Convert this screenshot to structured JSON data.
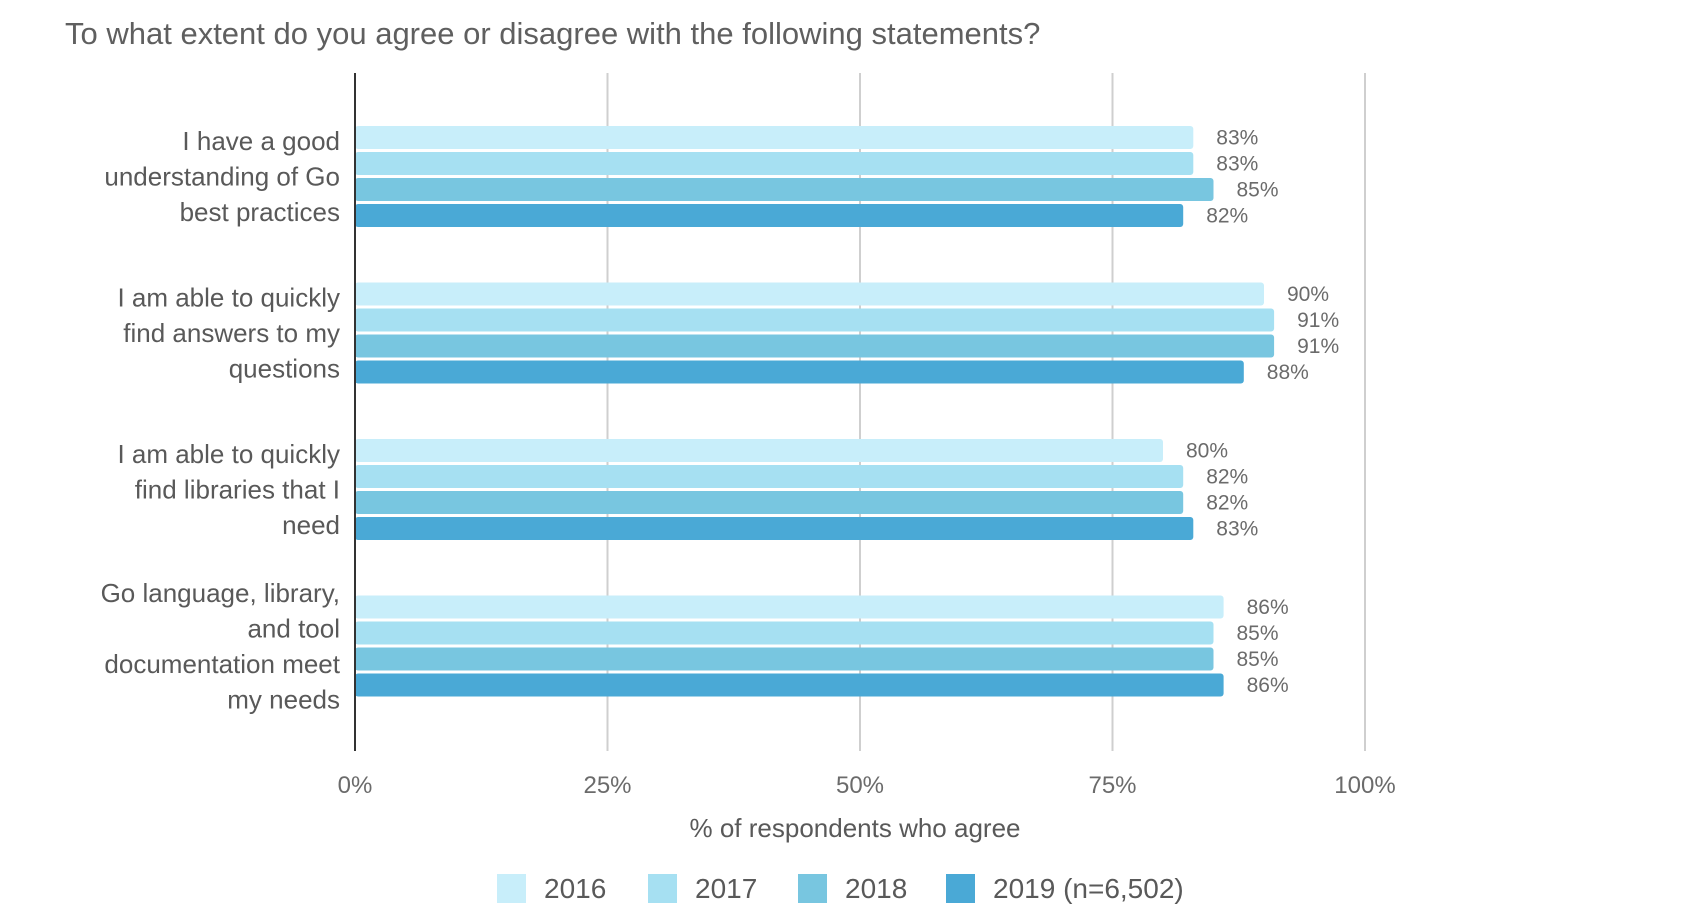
{
  "chart_data": {
    "type": "bar",
    "orientation": "horizontal",
    "title": "To what extent do you agree or disagree with the following statements?",
    "xlabel": "% of respondents who agree",
    "ylabel": "",
    "xlim": [
      0,
      100
    ],
    "x_ticks": [
      "0%",
      "25%",
      "50%",
      "75%",
      "100%"
    ],
    "grid": true,
    "legend_position": "bottom",
    "categories": [
      "I have a good understanding of Go best practices",
      "I am able to quickly find answers to my questions",
      "I am able to quickly find libraries that I need",
      "Go language, library, and tool documentation meet my needs"
    ],
    "category_label_lines": [
      [
        "I have a good",
        "understanding of Go",
        "best practices"
      ],
      [
        "I am able to quickly",
        "find answers to my",
        "questions"
      ],
      [
        "I am able to quickly",
        "find libraries that I",
        "need"
      ],
      [
        "Go language, library,",
        "and tool",
        "documentation meet",
        "my needs"
      ]
    ],
    "series": [
      {
        "name": "2016",
        "color": "#c8eefa",
        "values": [
          83,
          90,
          80,
          86
        ],
        "labels": [
          "83%",
          "90%",
          "80%",
          "86%"
        ]
      },
      {
        "name": "2017",
        "color": "#a6e0f2",
        "values": [
          83,
          91,
          82,
          85
        ],
        "labels": [
          "83%",
          "91%",
          "82%",
          "85%"
        ]
      },
      {
        "name": "2018",
        "color": "#78c6e0",
        "values": [
          85,
          91,
          82,
          85
        ],
        "labels": [
          "85%",
          "91%",
          "82%",
          "85%"
        ]
      },
      {
        "name": "2019 (n=6,502)",
        "color": "#4aa9d6",
        "values": [
          82,
          88,
          83,
          86
        ],
        "labels": [
          "82%",
          "88%",
          "83%",
          "86%"
        ]
      }
    ]
  }
}
